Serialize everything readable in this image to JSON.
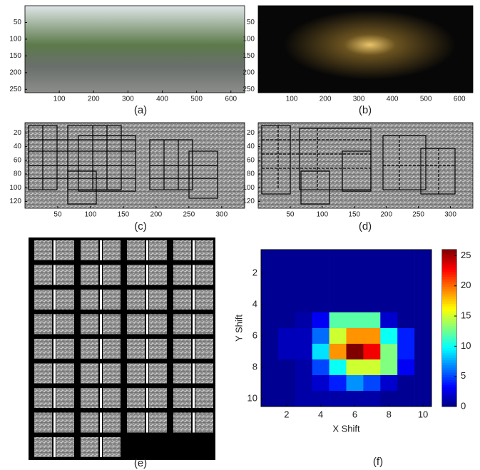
{
  "panels": [
    {
      "label": "(a)",
      "xlim": [
        0,
        640
      ],
      "ylim": [
        0,
        260
      ],
      "xticks": [
        100,
        200,
        300,
        400,
        500,
        600
      ],
      "yticks": [
        50,
        100,
        150,
        200,
        250
      ]
    },
    {
      "label": "(b)",
      "xlim": [
        0,
        640
      ],
      "ylim": [
        0,
        260
      ],
      "xticks": [
        100,
        200,
        300,
        400,
        500,
        600
      ],
      "yticks": [
        50,
        100,
        150,
        200,
        250
      ]
    },
    {
      "label": "(c)",
      "xlim": [
        0,
        335
      ],
      "ylim": [
        5,
        130
      ],
      "xticks": [
        50,
        100,
        150,
        200,
        250,
        300
      ],
      "yticks": [
        20,
        40,
        60,
        80,
        100,
        120
      ]
    },
    {
      "label": "(d)",
      "xlim": [
        0,
        335
      ],
      "ylim": [
        5,
        130
      ],
      "xticks": [
        50,
        100,
        150,
        200,
        250,
        300
      ],
      "yticks": [
        20,
        40,
        60,
        80,
        100,
        120
      ]
    },
    {
      "label": "(e)"
    },
    {
      "label": "(f)",
      "type": "heatmap",
      "xlabel": "X Shift",
      "ylabel": "Y Shift",
      "xlim": [
        0.5,
        10.5
      ],
      "ylim": [
        0.5,
        10.5
      ],
      "xticks": [
        2,
        4,
        6,
        8,
        10
      ],
      "yticks": [
        2,
        4,
        6,
        8,
        10
      ],
      "values": [
        [
          0.5,
          0.5,
          0.5,
          0.5,
          0.5,
          0.5,
          0.5,
          0.5,
          0.5,
          0.5
        ],
        [
          0.5,
          0.5,
          0.5,
          0.5,
          0.5,
          0.5,
          0.5,
          0.5,
          0.5,
          0.5
        ],
        [
          0.5,
          0.5,
          0.5,
          0.5,
          0.5,
          0.5,
          0.5,
          0.5,
          0.5,
          0.5
        ],
        [
          0.5,
          0.5,
          0.5,
          0.5,
          0.5,
          0.5,
          0.5,
          0.5,
          0.5,
          0.5
        ],
        [
          0.5,
          0.5,
          1,
          3,
          12,
          12,
          12,
          2,
          0.5,
          0.5
        ],
        [
          0.5,
          1.5,
          1.5,
          6,
          15,
          19,
          19,
          10,
          4,
          0.5
        ],
        [
          0.5,
          1.5,
          1.5,
          9,
          19,
          26,
          23,
          13,
          4,
          0.5
        ],
        [
          0.5,
          0.5,
          1,
          5,
          10,
          15,
          15,
          13,
          3,
          0.5
        ],
        [
          0.5,
          0.5,
          1,
          2,
          4,
          7,
          5,
          2,
          0.5,
          0.5
        ],
        [
          0.5,
          0.5,
          1,
          1,
          1,
          1,
          1,
          0.5,
          0.5,
          0.5
        ]
      ],
      "clim": [
        0,
        26
      ],
      "cticks": [
        0,
        5,
        10,
        15,
        20,
        25
      ]
    }
  ]
}
